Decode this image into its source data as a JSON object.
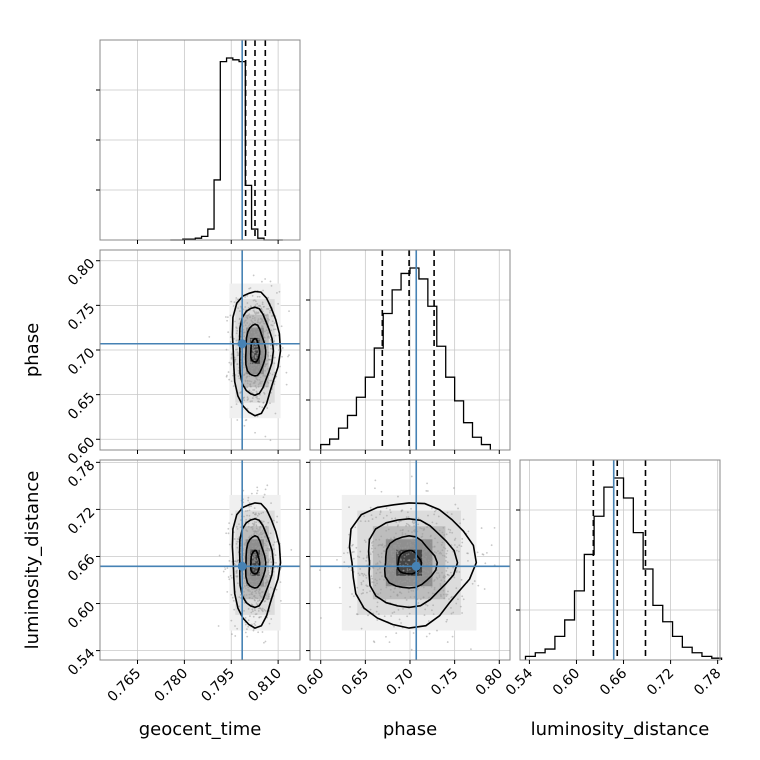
{
  "chart_data": {
    "type": "corner",
    "grid": true,
    "parameters": [
      {
        "name": "geocent_time",
        "range": [
          0.753,
          0.817
        ],
        "ticks": [
          "0.765",
          "0.780",
          "0.795",
          "0.810"
        ],
        "truth": 0.7985,
        "median": 0.8026,
        "q16": 0.7996,
        "q84": 0.8059
      },
      {
        "name": "phase",
        "range": [
          0.588,
          0.812
        ],
        "ticks": [
          "0.60",
          "0.65",
          "0.70",
          "0.75",
          "0.80"
        ],
        "truth": 0.707,
        "median": 0.699,
        "q16": 0.669,
        "q84": 0.727
      },
      {
        "name": "luminosity_distance",
        "range": [
          0.528,
          0.783
        ],
        "ticks": [
          "0.54",
          "0.60",
          "0.66",
          "0.72",
          "0.78"
        ],
        "truth": 0.6475,
        "median": 0.652,
        "q16": 0.6215,
        "q84": 0.688
      }
    ],
    "histograms": {
      "geocent_time": {
        "edges": [
          0.7755,
          0.7775,
          0.7795,
          0.7815,
          0.7835,
          0.7855,
          0.7875,
          0.7895,
          0.7915,
          0.7935,
          0.7955,
          0.7975,
          0.7995,
          0.8015,
          0.8035,
          0.8055,
          0.8075,
          0.8095,
          0.8115
        ],
        "counts": [
          0,
          0,
          0.005,
          0.005,
          0.01,
          0.02,
          0.06,
          0.33,
          0.98,
          1.0,
          0.99,
          0.98,
          0.3,
          0.06,
          0.01,
          0,
          0,
          0
        ]
      },
      "phase": {
        "edges": [
          0.6,
          0.61,
          0.62,
          0.63,
          0.64,
          0.65,
          0.66,
          0.67,
          0.68,
          0.69,
          0.7,
          0.71,
          0.72,
          0.73,
          0.74,
          0.75,
          0.76,
          0.77,
          0.78,
          0.79
        ],
        "counts": [
          0.03,
          0.06,
          0.12,
          0.19,
          0.29,
          0.4,
          0.56,
          0.75,
          0.88,
          0.97,
          1.0,
          0.94,
          0.79,
          0.57,
          0.4,
          0.27,
          0.15,
          0.07,
          0.03
        ]
      },
      "luminosity_distance": {
        "edges": [
          0.535,
          0.5475,
          0.56,
          0.5725,
          0.585,
          0.5975,
          0.61,
          0.6225,
          0.635,
          0.6475,
          0.66,
          0.6725,
          0.685,
          0.6975,
          0.71,
          0.7225,
          0.735,
          0.7475,
          0.76,
          0.7725,
          0.785
        ],
        "counts": [
          0.02,
          0.04,
          0.06,
          0.13,
          0.22,
          0.38,
          0.58,
          0.79,
          0.95,
          1.0,
          0.89,
          0.7,
          0.5,
          0.3,
          0.21,
          0.13,
          0.07,
          0.04,
          0.02,
          0.01
        ]
      }
    }
  },
  "colors": {
    "truth": "#4682b4",
    "hist": "#000000",
    "grid": "#c8c8c8",
    "points": "#9a9a9a"
  }
}
